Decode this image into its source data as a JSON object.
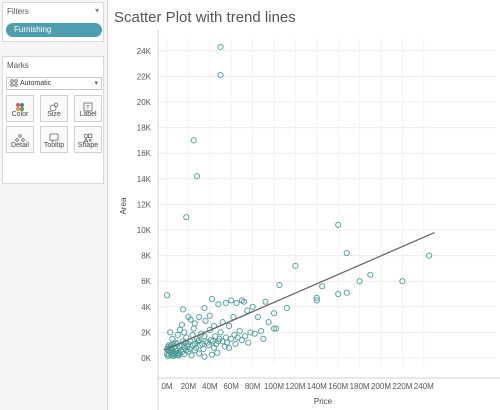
{
  "sidebar": {
    "filters": {
      "title": "Filters",
      "caret": "▾",
      "pill": "Furnishing"
    },
    "marks": {
      "title": "Marks",
      "dropdown_value": "Automatic",
      "dropdown_icon": "dots-icon",
      "buttons": [
        {
          "label": "Color",
          "icon": "color-icon"
        },
        {
          "label": "Size",
          "icon": "size-icon"
        },
        {
          "label": "Label",
          "icon": "label-icon"
        },
        {
          "label": "Detail",
          "icon": "detail-icon"
        },
        {
          "label": "Tooltip",
          "icon": "tooltip-icon"
        },
        {
          "label": "Shape",
          "icon": "shape-icon"
        }
      ]
    }
  },
  "chart_data": {
    "type": "scatter",
    "title": "Scatter Plot with trend lines",
    "xlabel": "Price",
    "ylabel": "Area",
    "x_ticks": [
      "0M",
      "20M",
      "40M",
      "60M",
      "80M",
      "100M",
      "120M",
      "140M",
      "160M",
      "180M",
      "200M",
      "220M",
      "240M"
    ],
    "y_ticks": [
      "0K",
      "2K",
      "4K",
      "6K",
      "8K",
      "10K",
      "12K",
      "14K",
      "16K",
      "18K",
      "20K",
      "22K",
      "24K"
    ],
    "xlim": [
      -8,
      250
    ],
    "ylim": [
      -300,
      25500
    ],
    "grid": true,
    "marker": "hollow-circle",
    "point_color": "#4a9a96",
    "trend_line_color": "#666666",
    "trend_line": {
      "x": [
        -3,
        250
      ],
      "y": [
        600,
        9800
      ]
    },
    "points": [
      [
        50,
        24300
      ],
      [
        50,
        22100
      ],
      [
        25,
        17000
      ],
      [
        28,
        14200
      ],
      [
        18,
        11000
      ],
      [
        160,
        10400
      ],
      [
        168,
        8200
      ],
      [
        245,
        8000
      ],
      [
        120,
        7200
      ],
      [
        190,
        6500
      ],
      [
        180,
        6000
      ],
      [
        220,
        6000
      ],
      [
        145,
        5600
      ],
      [
        168,
        5100
      ],
      [
        105,
        5700
      ],
      [
        140,
        4700
      ],
      [
        140,
        4500
      ],
      [
        160,
        5000
      ],
      [
        0,
        4900
      ],
      [
        42,
        4600
      ],
      [
        60,
        4500
      ],
      [
        70,
        4500
      ],
      [
        72,
        4400
      ],
      [
        92,
        4400
      ],
      [
        55,
        4300
      ],
      [
        65,
        4300
      ],
      [
        48,
        4200
      ],
      [
        80,
        4000
      ],
      [
        35,
        3900
      ],
      [
        112,
        3900
      ],
      [
        75,
        3700
      ],
      [
        100,
        3500
      ],
      [
        40,
        3300
      ],
      [
        62,
        3200
      ],
      [
        85,
        3200
      ],
      [
        30,
        3200
      ],
      [
        22,
        3000
      ],
      [
        95,
        2800
      ],
      [
        58,
        2500
      ],
      [
        100,
        2300
      ],
      [
        102,
        2300
      ],
      [
        68,
        2100
      ],
      [
        50,
        2000
      ],
      [
        3,
        2000
      ],
      [
        10,
        1800
      ],
      [
        18,
        1600
      ],
      [
        28,
        1500
      ],
      [
        35,
        1700
      ],
      [
        45,
        1700
      ],
      [
        55,
        1600
      ],
      [
        78,
        2000
      ],
      [
        88,
        2100
      ],
      [
        12,
        2200
      ],
      [
        25,
        2300
      ],
      [
        40,
        2200
      ],
      [
        5,
        1500
      ],
      [
        8,
        1200
      ],
      [
        15,
        1300
      ],
      [
        20,
        1100
      ],
      [
        30,
        1400
      ],
      [
        38,
        1200
      ],
      [
        48,
        1300
      ],
      [
        60,
        1500
      ],
      [
        70,
        1400
      ],
      [
        15,
        3800
      ],
      [
        20,
        3200
      ],
      [
        14,
        2600
      ],
      [
        0,
        300
      ],
      [
        1,
        150
      ],
      [
        2,
        500
      ],
      [
        3,
        800
      ],
      [
        4,
        1000
      ],
      [
        5,
        600
      ],
      [
        6,
        300
      ],
      [
        7,
        900
      ],
      [
        8,
        700
      ],
      [
        9,
        1100
      ],
      [
        10,
        400
      ],
      [
        11,
        200
      ],
      [
        12,
        900
      ],
      [
        13,
        600
      ],
      [
        14,
        1000
      ],
      [
        16,
        800
      ],
      [
        17,
        1200
      ],
      [
        19,
        900
      ],
      [
        21,
        700
      ],
      [
        22,
        1300
      ],
      [
        24,
        1000
      ],
      [
        26,
        1100
      ],
      [
        27,
        800
      ],
      [
        29,
        1300
      ],
      [
        31,
        1000
      ],
      [
        33,
        1100
      ],
      [
        36,
        1300
      ],
      [
        39,
        1000
      ],
      [
        41,
        1400
      ],
      [
        43,
        1300
      ],
      [
        46,
        1100
      ],
      [
        49,
        1500
      ],
      [
        52,
        1300
      ],
      [
        56,
        1200
      ],
      [
        63,
        1800
      ],
      [
        66,
        1600
      ],
      [
        73,
        1700
      ],
      [
        82,
        1900
      ],
      [
        2,
        250
      ],
      [
        4,
        350
      ],
      [
        6,
        150
      ],
      [
        8,
        300
      ],
      [
        10,
        250
      ],
      [
        1,
        600
      ],
      [
        3,
        450
      ],
      [
        5,
        200
      ],
      [
        7,
        450
      ],
      [
        9,
        550
      ],
      [
        12,
        350
      ],
      [
        14,
        450
      ],
      [
        16,
        300
      ],
      [
        18,
        600
      ],
      [
        20,
        500
      ],
      [
        0,
        700
      ],
      [
        1,
        850
      ],
      [
        2,
        1000
      ],
      [
        4,
        750
      ],
      [
        6,
        1100
      ],
      [
        23,
        200
      ],
      [
        30,
        350
      ],
      [
        35,
        100
      ],
      [
        42,
        250
      ],
      [
        47,
        400
      ],
      [
        58,
        800
      ],
      [
        76,
        1200
      ],
      [
        90,
        1500
      ],
      [
        64,
        1100
      ],
      [
        54,
        900
      ],
      [
        44,
        800
      ],
      [
        34,
        700
      ],
      [
        26,
        600
      ],
      [
        32,
        1900
      ],
      [
        44,
        2500
      ],
      [
        52,
        2800
      ],
      [
        36,
        2900
      ],
      [
        26,
        2700
      ],
      [
        16,
        2000
      ],
      [
        24,
        1800
      ]
    ]
  }
}
